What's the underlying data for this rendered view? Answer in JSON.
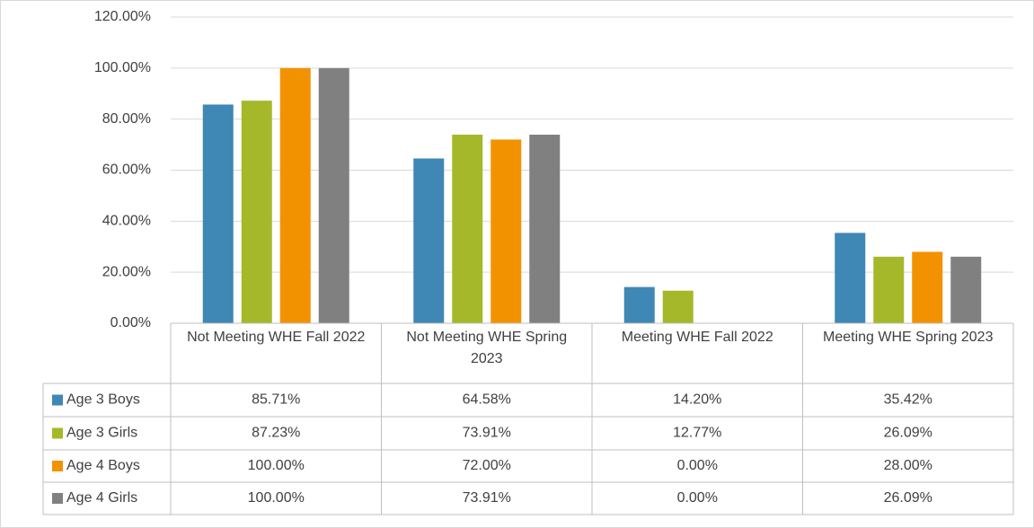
{
  "chart_data": {
    "type": "bar",
    "categories": [
      "Not Meeting WHE Fall 2022",
      "Not Meeting WHE Spring 2023",
      "Meeting WHE Fall 2022",
      "Meeting WHE Spring 2023"
    ],
    "series": [
      {
        "name": "Age 3 Boys",
        "color": "#3f87b4",
        "values": [
          85.71,
          64.58,
          14.2,
          35.42
        ],
        "value_labels": [
          "85.71%",
          "64.58%",
          "14.20%",
          "35.42%"
        ]
      },
      {
        "name": "Age 3 Girls",
        "color": "#a5b82a",
        "values": [
          87.23,
          73.91,
          12.77,
          26.09
        ],
        "value_labels": [
          "87.23%",
          "73.91%",
          "12.77%",
          "26.09%"
        ]
      },
      {
        "name": "Age 4 Boys",
        "color": "#f39200",
        "values": [
          100,
          72,
          0,
          28
        ],
        "value_labels": [
          "100.00%",
          "72.00%",
          "0.00%",
          "28.00%"
        ]
      },
      {
        "name": "Age 4 Girls",
        "color": "#808080",
        "values": [
          100,
          73.91,
          0,
          26.09
        ],
        "value_labels": [
          "100.00%",
          "73.91%",
          "0.00%",
          "26.09%"
        ]
      }
    ],
    "ylim": [
      0,
      120
    ],
    "yticks": [
      {
        "value": 0,
        "label": "0.00%"
      },
      {
        "value": 20,
        "label": "20.00%"
      },
      {
        "value": 40,
        "label": "40.00%"
      },
      {
        "value": 60,
        "label": "60.00%"
      },
      {
        "value": 80,
        "label": "80.00%"
      },
      {
        "value": 100,
        "label": "100.00%"
      },
      {
        "value": 120,
        "label": "120.00%"
      }
    ],
    "grid": true
  }
}
